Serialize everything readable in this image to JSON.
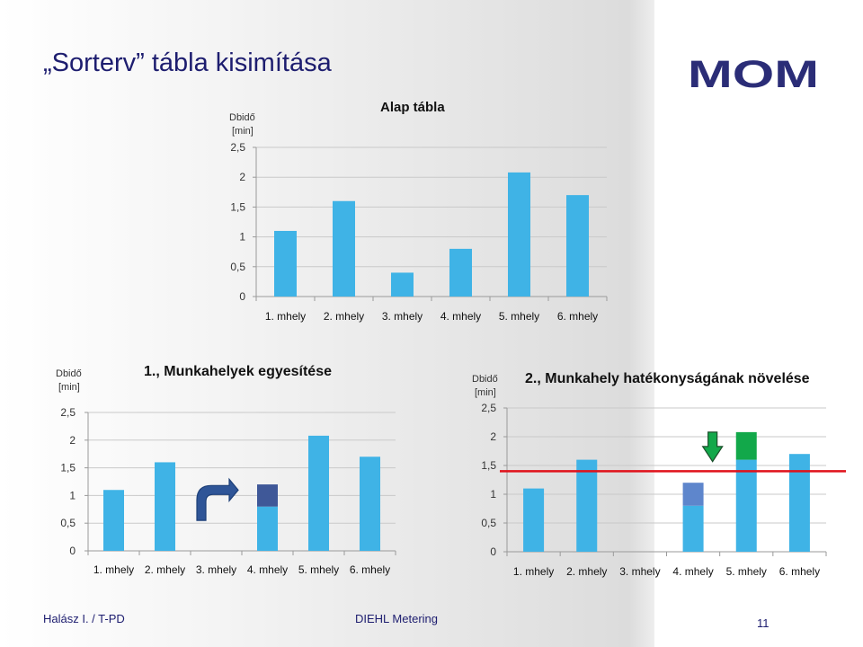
{
  "slide": {
    "title": "„Sorterv” tábla kisimítása",
    "logo_text": "MOM",
    "footer_left": "Halász I. / T-PD",
    "footer_center": "DIEHL Metering",
    "page_number": "11"
  },
  "colors": {
    "bar": "#3fb3e6",
    "moved": "#3f5898",
    "moved_light": "#5e86cc",
    "reduced": "#12a84a",
    "target_line": "#e0121b",
    "title": "#1d1d6f",
    "logo": "#2b2d77",
    "axis_text": "#333333"
  },
  "chart_data": [
    {
      "type": "bar",
      "title": "Alap tábla",
      "ylabel": "Dbidő\n[min]",
      "categories": [
        "1. mhely",
        "2. mhely",
        "3. mhely",
        "4. mhely",
        "5. mhely",
        "6. mhely"
      ],
      "values": [
        1.1,
        1.6,
        0.4,
        0.8,
        2.08,
        1.7
      ],
      "ylim": [
        0,
        2.5
      ],
      "yticks": [
        0,
        0.5,
        1,
        1.5,
        2,
        2.5
      ],
      "ytick_labels": [
        "0",
        "0,5",
        "1",
        "1,5",
        "2",
        "2,5"
      ],
      "grid": true
    },
    {
      "type": "bar",
      "title": "1., Munkahelyek egyesítése",
      "ylabel": "Dbidő\n[min]",
      "categories": [
        "1. mhely",
        "2. mhely",
        "3. mhely",
        "4. mhely",
        "5. mhely",
        "6. mhely"
      ],
      "series": [
        {
          "name": "base",
          "values": [
            1.1,
            1.6,
            0,
            0.8,
            2.08,
            1.7
          ]
        },
        {
          "name": "moved",
          "values": [
            0,
            0,
            0,
            0.4,
            0,
            0
          ]
        }
      ],
      "annotation": "curved-arrow-from-3-to-4",
      "ylim": [
        0,
        2.5
      ],
      "yticks": [
        0,
        0.5,
        1,
        1.5,
        2,
        2.5
      ],
      "ytick_labels": [
        "0",
        "0,5",
        "1",
        "1,5",
        "2",
        "2,5"
      ],
      "grid": true
    },
    {
      "type": "bar",
      "title": "2., Munkahely hatékonyságának növelése",
      "ylabel": "Dbidő\n[min]",
      "categories": [
        "1. mhely",
        "2. mhely",
        "3. mhely",
        "4. mhely",
        "5. mhely",
        "6. mhely"
      ],
      "series": [
        {
          "name": "base",
          "values": [
            1.1,
            1.6,
            0,
            0.8,
            1.6,
            1.7
          ]
        },
        {
          "name": "moved",
          "values": [
            0,
            0,
            0,
            0.4,
            0,
            0
          ]
        },
        {
          "name": "reduced",
          "values": [
            0,
            0,
            0,
            0,
            0.48,
            0
          ]
        }
      ],
      "target_line": 1.4,
      "annotation": "down-arrow-above-5",
      "ylim": [
        0,
        2.5
      ],
      "yticks": [
        0,
        0.5,
        1,
        1.5,
        2,
        2.5
      ],
      "ytick_labels": [
        "0",
        "0,5",
        "1",
        "1,5",
        "2",
        "2,5"
      ],
      "grid": true
    }
  ]
}
